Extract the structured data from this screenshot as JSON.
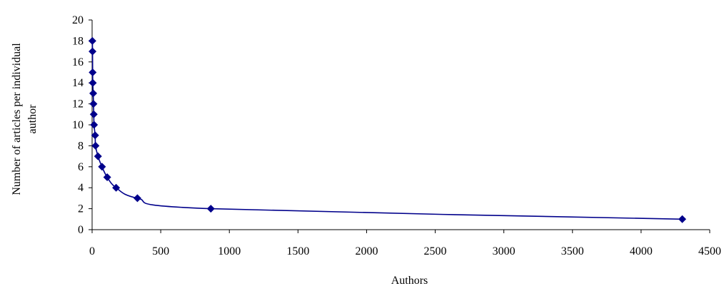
{
  "chart_data": {
    "type": "line",
    "title": "",
    "xlabel": "Authors",
    "ylabel_lines": [
      "Number of articles per individual",
      "author"
    ],
    "xlim": [
      0,
      4500
    ],
    "ylim": [
      0,
      20
    ],
    "x_ticks": [
      0,
      500,
      1000,
      1500,
      2000,
      2500,
      3000,
      3500,
      4000,
      4500
    ],
    "y_ticks": [
      0,
      2,
      4,
      6,
      8,
      10,
      12,
      14,
      16,
      18,
      20
    ],
    "grid": false,
    "legend": "none",
    "series": [
      {
        "color": "#00008B",
        "marker": "diamond",
        "points": [
          {
            "x": 2,
            "y": 18
          },
          {
            "x": 3,
            "y": 17
          },
          {
            "x": 4,
            "y": 15
          },
          {
            "x": 5,
            "y": 14
          },
          {
            "x": 8,
            "y": 13
          },
          {
            "x": 10,
            "y": 12
          },
          {
            "x": 12,
            "y": 11
          },
          {
            "x": 14,
            "y": 10
          },
          {
            "x": 22,
            "y": 9
          },
          {
            "x": 25,
            "y": 8
          },
          {
            "x": 43,
            "y": 7
          },
          {
            "x": 72,
            "y": 6
          },
          {
            "x": 110,
            "y": 5
          },
          {
            "x": 175,
            "y": 4
          },
          {
            "x": 330,
            "y": 3
          },
          {
            "x": 865,
            "y": 2
          },
          {
            "x": 4300,
            "y": 1
          }
        ]
      }
    ]
  }
}
